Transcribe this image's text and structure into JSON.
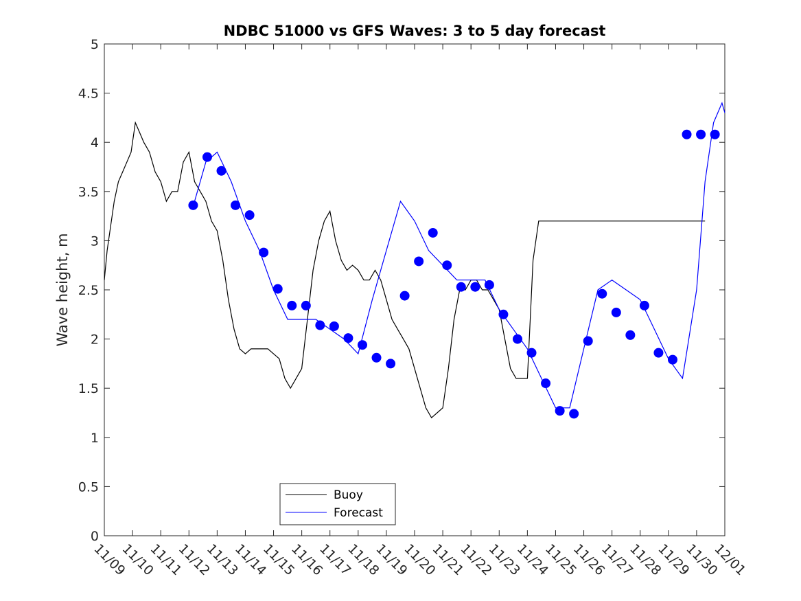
{
  "chart_data": {
    "type": "line",
    "title": "NDBC 51000 vs GFS Waves: 3 to 5 day forecast",
    "xlabel": "",
    "ylabel": "Wave height, m",
    "xlim": [
      "11/09",
      "12/01"
    ],
    "ylim": [
      0,
      5
    ],
    "x_tick_labels": [
      "11/09",
      "11/10",
      "11/11",
      "11/12",
      "11/13",
      "11/14",
      "11/15",
      "11/16",
      "11/17",
      "11/18",
      "11/19",
      "11/20",
      "11/21",
      "11/22",
      "11/23",
      "11/24",
      "11/25",
      "11/26",
      "11/27",
      "11/28",
      "11/29",
      "11/30",
      "12/01"
    ],
    "y_ticks": [
      0,
      0.5,
      1,
      1.5,
      2,
      2.5,
      3,
      3.5,
      4,
      4.5,
      5
    ],
    "y_tick_labels": [
      "0",
      "0.5",
      "1",
      "1.5",
      "2",
      "2.5",
      "3",
      "3.5",
      "4",
      "4.5",
      "5"
    ],
    "grid": false,
    "legend_position": "bottom-center-left",
    "colors": {
      "buoy": "#000000",
      "forecast": "#0000ff"
    },
    "series": [
      {
        "name": "Buoy",
        "x_units": "days since 11/09",
        "x": [
          0.0,
          0.1,
          0.2,
          0.35,
          0.5,
          0.65,
          0.8,
          0.95,
          1.1,
          1.25,
          1.4,
          1.6,
          1.8,
          2.0,
          2.2,
          2.4,
          2.6,
          2.8,
          3.0,
          3.2,
          3.4,
          3.6,
          3.8,
          4.0,
          4.2,
          4.4,
          4.6,
          4.8,
          5.0,
          5.2,
          5.4,
          5.6,
          5.8,
          6.0,
          6.2,
          6.4,
          6.6,
          6.8,
          7.0,
          7.2,
          7.4,
          7.6,
          7.8,
          8.0,
          8.2,
          8.4,
          8.6,
          8.8,
          9.0,
          9.2,
          9.4,
          9.6,
          9.8,
          10.0,
          10.2,
          10.4,
          10.6,
          10.8,
          11.0,
          11.2,
          11.4,
          11.6,
          11.8,
          12.0,
          12.2,
          12.4,
          12.6,
          12.8,
          13.0,
          13.2,
          13.4,
          13.6,
          13.8,
          14.0,
          14.2,
          14.4,
          14.6,
          14.8,
          15.0,
          15.2,
          15.4,
          15.6,
          15.8,
          16.0,
          16.2,
          16.4,
          16.6,
          16.8,
          17.0,
          17.2,
          17.4,
          17.6,
          17.8,
          18.0,
          18.2,
          18.4,
          18.6,
          18.8,
          19.0,
          19.2,
          19.4,
          19.6,
          19.8,
          20.0,
          20.2,
          20.4,
          20.6,
          20.8,
          21.0,
          21.1,
          21.2,
          21.3
        ],
        "values": [
          2.6,
          2.9,
          3.1,
          3.4,
          3.6,
          3.7,
          3.8,
          3.9,
          4.2,
          4.1,
          4.0,
          3.9,
          3.7,
          3.6,
          3.4,
          3.5,
          3.5,
          3.8,
          3.9,
          3.6,
          3.5,
          3.4,
          3.2,
          3.1,
          2.8,
          2.4,
          2.1,
          1.9,
          1.85,
          1.9,
          1.9,
          1.9,
          1.9,
          1.85,
          1.8,
          1.6,
          1.5,
          1.6,
          1.7,
          2.2,
          2.7,
          3.0,
          3.2,
          3.3,
          3.0,
          2.8,
          2.7,
          2.75,
          2.7,
          2.6,
          2.6,
          2.7,
          2.6,
          2.4,
          2.2,
          2.1,
          2.0,
          1.9,
          1.7,
          1.5,
          1.3,
          1.2,
          1.25,
          1.3,
          1.7,
          2.2,
          2.5,
          2.5,
          2.6,
          2.6,
          2.5,
          2.5,
          2.4,
          2.3,
          2.0,
          1.7,
          1.6,
          1.6,
          1.6,
          2.8,
          3.2,
          3.2,
          3.2,
          3.2,
          3.2,
          3.2,
          3.2,
          3.2,
          3.2,
          3.2,
          3.2,
          3.2,
          3.2,
          3.2,
          3.2,
          3.2,
          3.2,
          3.2,
          3.2,
          3.2,
          3.2,
          3.2,
          3.2,
          3.2,
          3.2,
          3.2,
          3.2,
          3.2,
          3.2,
          3.2,
          3.2,
          3.2
        ]
      },
      {
        "name": "Forecast",
        "x_units": "days since 11/09",
        "x": [
          3.2,
          3.6,
          4.0,
          4.5,
          5.0,
          5.5,
          6.0,
          6.5,
          7.0,
          7.5,
          8.0,
          8.5,
          9.0,
          9.5,
          10.0,
          10.5,
          11.0,
          11.5,
          12.0,
          12.5,
          13.0,
          13.5,
          14.0,
          14.5,
          15.0,
          15.5,
          16.0,
          16.5,
          17.0,
          17.5,
          18.0,
          18.5,
          19.0,
          19.5,
          20.0,
          20.5,
          21.0,
          21.3,
          21.6,
          21.9,
          22.0
        ],
        "values": [
          3.4,
          3.8,
          3.9,
          3.6,
          3.2,
          2.9,
          2.5,
          2.2,
          2.2,
          2.2,
          2.1,
          2.0,
          1.85,
          2.4,
          2.9,
          3.4,
          3.2,
          2.9,
          2.75,
          2.6,
          2.6,
          2.6,
          2.3,
          2.1,
          1.9,
          1.6,
          1.3,
          1.3,
          1.9,
          2.5,
          2.6,
          2.5,
          2.4,
          2.1,
          1.8,
          1.6,
          2.5,
          3.6,
          4.2,
          4.4,
          4.3
        ]
      }
    ],
    "forecast_markers": {
      "x_units": "days since 11/09",
      "x": [
        3.15,
        3.65,
        4.15,
        4.65,
        5.15,
        5.65,
        6.15,
        6.65,
        7.15,
        7.65,
        8.15,
        8.65,
        9.15,
        9.65,
        10.15,
        10.65,
        11.15,
        11.65,
        12.15,
        12.65,
        13.15,
        13.65,
        14.15,
        14.65,
        15.15,
        15.65,
        16.15,
        16.65,
        17.15,
        17.65,
        18.15,
        18.65,
        19.15,
        19.65,
        20.15,
        20.65,
        21.15,
        21.65
      ],
      "values": [
        3.36,
        3.85,
        3.71,
        3.36,
        3.26,
        2.88,
        2.51,
        2.34,
        2.34,
        2.14,
        2.13,
        2.01,
        1.94,
        1.81,
        1.75,
        2.44,
        2.79,
        3.08,
        2.75,
        2.53,
        2.53,
        2.55,
        2.25,
        2.0,
        1.86,
        1.55,
        1.27,
        1.24,
        1.98,
        2.46,
        2.27,
        2.04,
        2.34,
        1.86,
        1.79,
        4.08,
        4.08,
        4.08
      ]
    }
  }
}
